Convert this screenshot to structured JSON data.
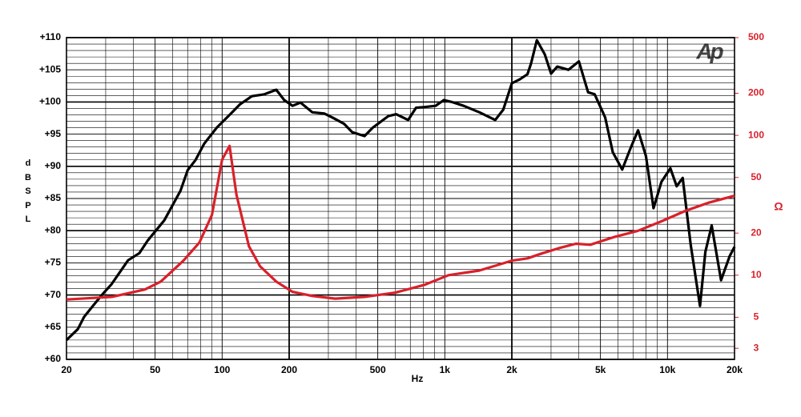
{
  "chart_data": {
    "type": "line",
    "x_label": "Hz",
    "y_label": "dB SPL",
    "y2_label": "Ω",
    "logo": "Ap",
    "xscale": "log",
    "y2scale": "log",
    "grid": true,
    "xlim": [
      20,
      20000
    ],
    "xticks": [
      20,
      50,
      100,
      200,
      500,
      {
        "value": 1000,
        "label": "1k"
      },
      {
        "value": 2000,
        "label": "2k"
      },
      {
        "value": 5000,
        "label": "5k"
      },
      {
        "value": 10000,
        "label": "10k"
      },
      {
        "value": 20000,
        "label": "20k"
      }
    ],
    "xmajor": [
      200,
      2000
    ],
    "xminor": [
      30,
      40,
      60,
      70,
      80,
      90,
      300,
      400,
      600,
      700,
      800,
      900,
      3000,
      4000,
      6000,
      7000,
      8000,
      9000
    ],
    "ylim": [
      60,
      110
    ],
    "yticks": [
      {
        "value": 60,
        "label": "+60"
      },
      {
        "value": 65,
        "label": "+65"
      },
      {
        "value": 70,
        "label": "+70"
      },
      {
        "value": 75,
        "label": "+75"
      },
      {
        "value": 80,
        "label": "+80"
      },
      {
        "value": 85,
        "label": "+85"
      },
      {
        "value": 90,
        "label": "+90"
      },
      {
        "value": 95,
        "label": "+95"
      },
      {
        "value": 100,
        "label": "+100"
      },
      {
        "value": 105,
        "label": "+105"
      },
      {
        "value": 110,
        "label": "+110"
      }
    ],
    "yminor": [
      61,
      62,
      63,
      64,
      66,
      67,
      68,
      69,
      71,
      72,
      73,
      74,
      76,
      77,
      78,
      79,
      81,
      82,
      83,
      84,
      86,
      87,
      88,
      89,
      91,
      92,
      93,
      94,
      96,
      97,
      98,
      99,
      101,
      102,
      103,
      104,
      106,
      107,
      108,
      109
    ],
    "y2lim": [
      2.5,
      500
    ],
    "y2ticks": [
      3,
      5,
      10,
      20,
      50,
      100,
      200,
      500
    ],
    "y2color": "#d9202a",
    "series": [
      {
        "color": "#000000",
        "x": [
          20,
          22.5,
          24,
          27,
          29.5,
          31.9,
          37.8,
          42.5,
          46.4,
          55,
          65,
          70,
          76,
          83,
          94.5,
          111,
          120,
          136,
          155,
          175,
          190,
          207,
          225,
          254,
          288,
          312,
          353,
          384,
          436,
          474,
          514,
          557,
          605,
          685,
          743,
          806,
          910,
          990,
          1075,
          1215,
          1430,
          1685,
          1830,
          2000,
          2165,
          2350,
          2440,
          2590,
          2810,
          3000,
          3200,
          3590,
          4000,
          4400,
          4710,
          5250,
          5680,
          6260,
          6800,
          7380,
          8000,
          8660,
          9400,
          10300,
          11000,
          11700,
          12700,
          14000,
          14800,
          15800,
          17400,
          19000,
          20000
        ],
        "values": [
          63.0,
          64.7,
          66.6,
          68.8,
          70.4,
          71.7,
          75.4,
          76.5,
          78.5,
          81.6,
          86.2,
          89.4,
          91.0,
          93.5,
          96.0,
          98.4,
          99.6,
          100.9,
          101.2,
          101.9,
          100.3,
          99.4,
          99.9,
          98.4,
          98.2,
          97.6,
          96.6,
          95.3,
          94.7,
          96.0,
          96.9,
          97.8,
          98.1,
          97.2,
          99.1,
          99.2,
          99.4,
          100.3,
          100.0,
          99.4,
          98.4,
          97.2,
          98.8,
          102.9,
          103.5,
          104.3,
          106.0,
          109.6,
          107.4,
          104.4,
          105.5,
          105.0,
          106.3,
          101.5,
          101.2,
          97.6,
          92.2,
          89.5,
          92.7,
          95.6,
          91.6,
          83.5,
          87.6,
          89.7,
          86.9,
          88.2,
          77.9,
          68.3,
          76.7,
          80.8,
          72.3,
          76.0,
          77.5
        ]
      },
      {
        "color": "#d9202a",
        "axis": "y2",
        "x": [
          20,
          32,
          45,
          53,
          67,
          79,
          90,
          100,
          108,
          116,
          132,
          148,
          175,
          207,
          254,
          322,
          437,
          600,
          806,
          1040,
          1430,
          2000,
          2350,
          2760,
          3250,
          3880,
          4500,
          5800,
          7380,
          9400,
          12000,
          15300,
          20000
        ],
        "values": [
          6.7,
          7.0,
          7.9,
          9.0,
          12.7,
          17.1,
          27,
          67,
          84,
          37.6,
          16.1,
          11.6,
          9.0,
          7.6,
          7.1,
          6.8,
          7.0,
          7.5,
          8.5,
          10.0,
          10.8,
          12.7,
          13.2,
          14.4,
          15.6,
          16.8,
          16.5,
          18.8,
          20.8,
          24.3,
          28.8,
          33,
          37
        ]
      }
    ]
  }
}
